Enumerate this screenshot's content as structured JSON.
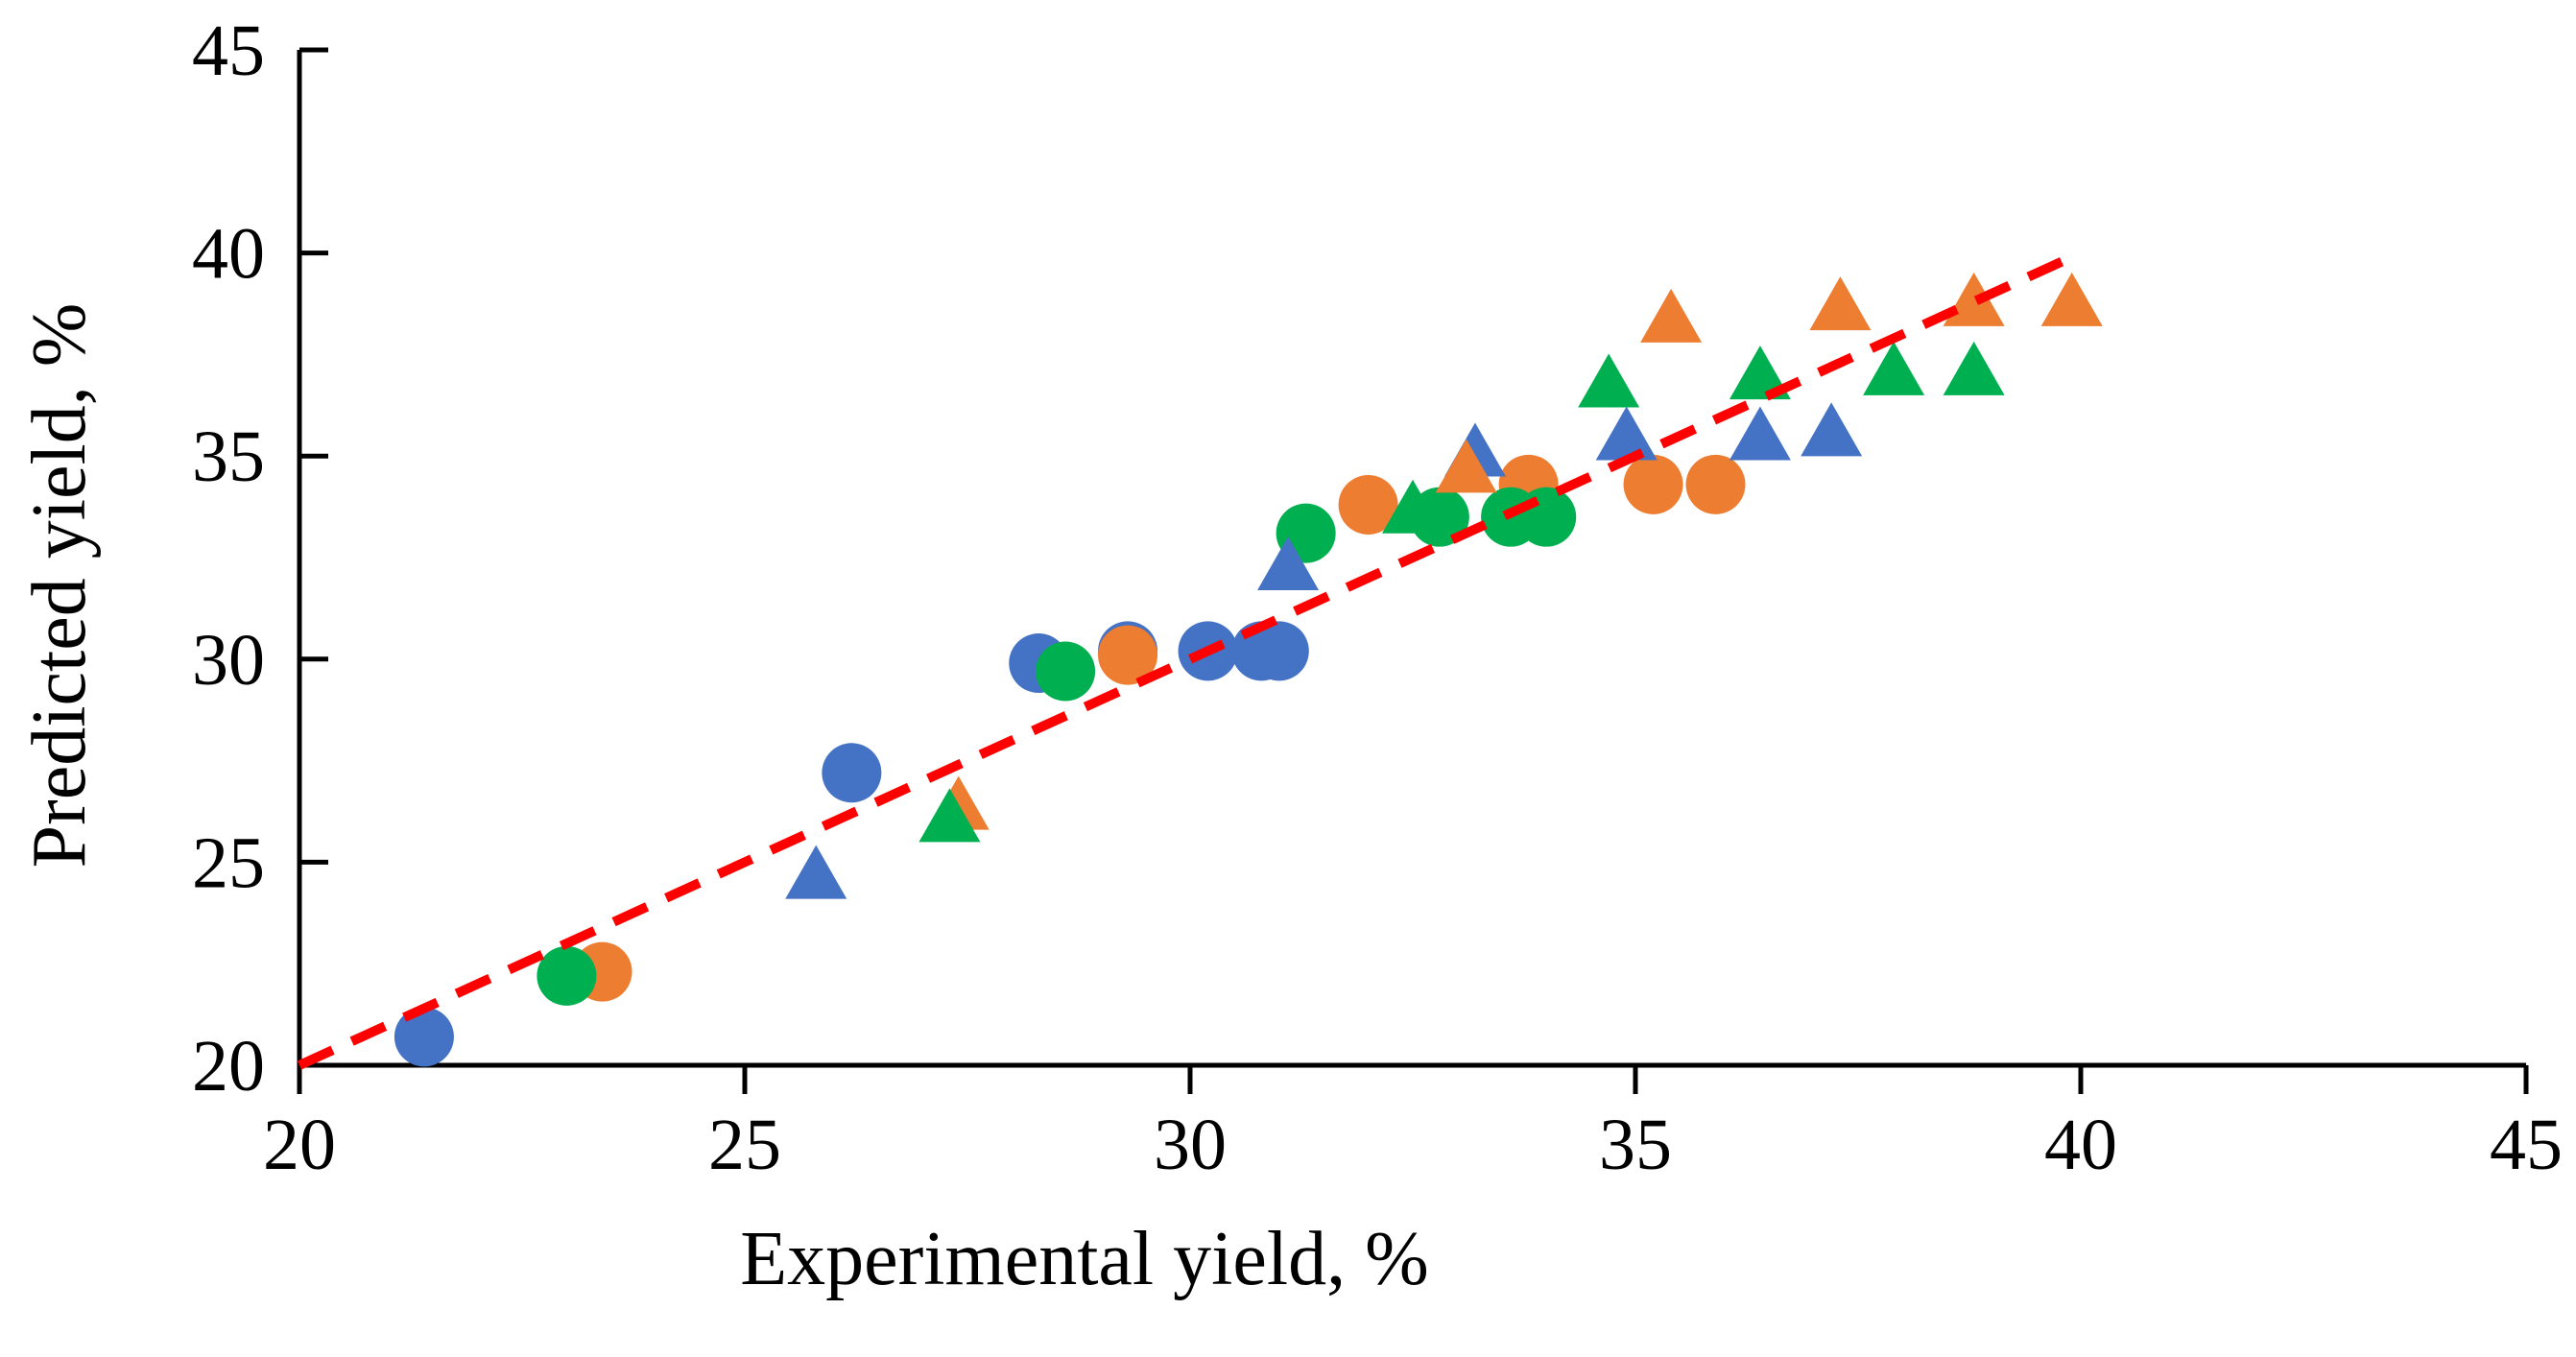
{
  "chart_data": {
    "type": "scatter",
    "title": "",
    "xlabel": "Experimental yield, %",
    "ylabel": "Predicted yield, %",
    "xlim": [
      20,
      45
    ],
    "ylim": [
      20,
      45
    ],
    "xticks": [
      20,
      25,
      30,
      35,
      40,
      45
    ],
    "yticks": [
      20,
      25,
      30,
      35,
      40,
      45
    ],
    "grid": false,
    "legend": "none",
    "colors": {
      "blue": "#4472C4",
      "orange": "#ED7D31",
      "green": "#00B050",
      "fit_line": "#FF0000"
    },
    "series": [
      {
        "name": "blue-circles",
        "marker": "circle",
        "color": "#4472C4",
        "points": [
          [
            21.4,
            20.7
          ],
          [
            26.2,
            27.2
          ],
          [
            28.3,
            29.9
          ],
          [
            29.3,
            30.2
          ],
          [
            30.2,
            30.2
          ],
          [
            30.8,
            30.2
          ],
          [
            31.0,
            30.2
          ]
        ]
      },
      {
        "name": "orange-circles",
        "marker": "circle",
        "color": "#ED7D31",
        "points": [
          [
            23.4,
            22.3
          ],
          [
            29.3,
            30.1
          ],
          [
            32.0,
            33.8
          ],
          [
            33.8,
            34.3
          ],
          [
            35.2,
            34.3
          ],
          [
            35.9,
            34.3
          ]
        ]
      },
      {
        "name": "green-circles",
        "marker": "circle",
        "color": "#00B050",
        "points": [
          [
            23.0,
            22.2
          ],
          [
            28.6,
            29.7
          ],
          [
            31.3,
            33.1
          ],
          [
            32.8,
            33.5
          ],
          [
            33.6,
            33.5
          ],
          [
            34.0,
            33.5
          ]
        ]
      },
      {
        "name": "blue-triangles",
        "marker": "triangle",
        "color": "#4472C4",
        "points": [
          [
            25.8,
            24.6
          ],
          [
            31.1,
            32.2
          ],
          [
            33.2,
            35.0
          ],
          [
            34.9,
            35.4
          ],
          [
            36.4,
            35.4
          ],
          [
            37.2,
            35.5
          ]
        ]
      },
      {
        "name": "orange-triangles",
        "marker": "triangle",
        "color": "#ED7D31",
        "points": [
          [
            27.4,
            26.3
          ],
          [
            33.1,
            34.6
          ],
          [
            35.4,
            38.3
          ],
          [
            37.3,
            38.6
          ],
          [
            38.8,
            38.7
          ],
          [
            39.9,
            38.7
          ]
        ]
      },
      {
        "name": "green-triangles",
        "marker": "triangle",
        "color": "#00B050",
        "points": [
          [
            27.3,
            26.0
          ],
          [
            32.5,
            33.6
          ],
          [
            34.7,
            36.7
          ],
          [
            36.4,
            36.9
          ],
          [
            37.9,
            37.0
          ],
          [
            38.8,
            37.0
          ]
        ]
      }
    ],
    "fit_line": {
      "style": "dashed",
      "color": "#FF0000",
      "from": [
        20,
        20
      ],
      "to": [
        40,
        40
      ]
    }
  }
}
